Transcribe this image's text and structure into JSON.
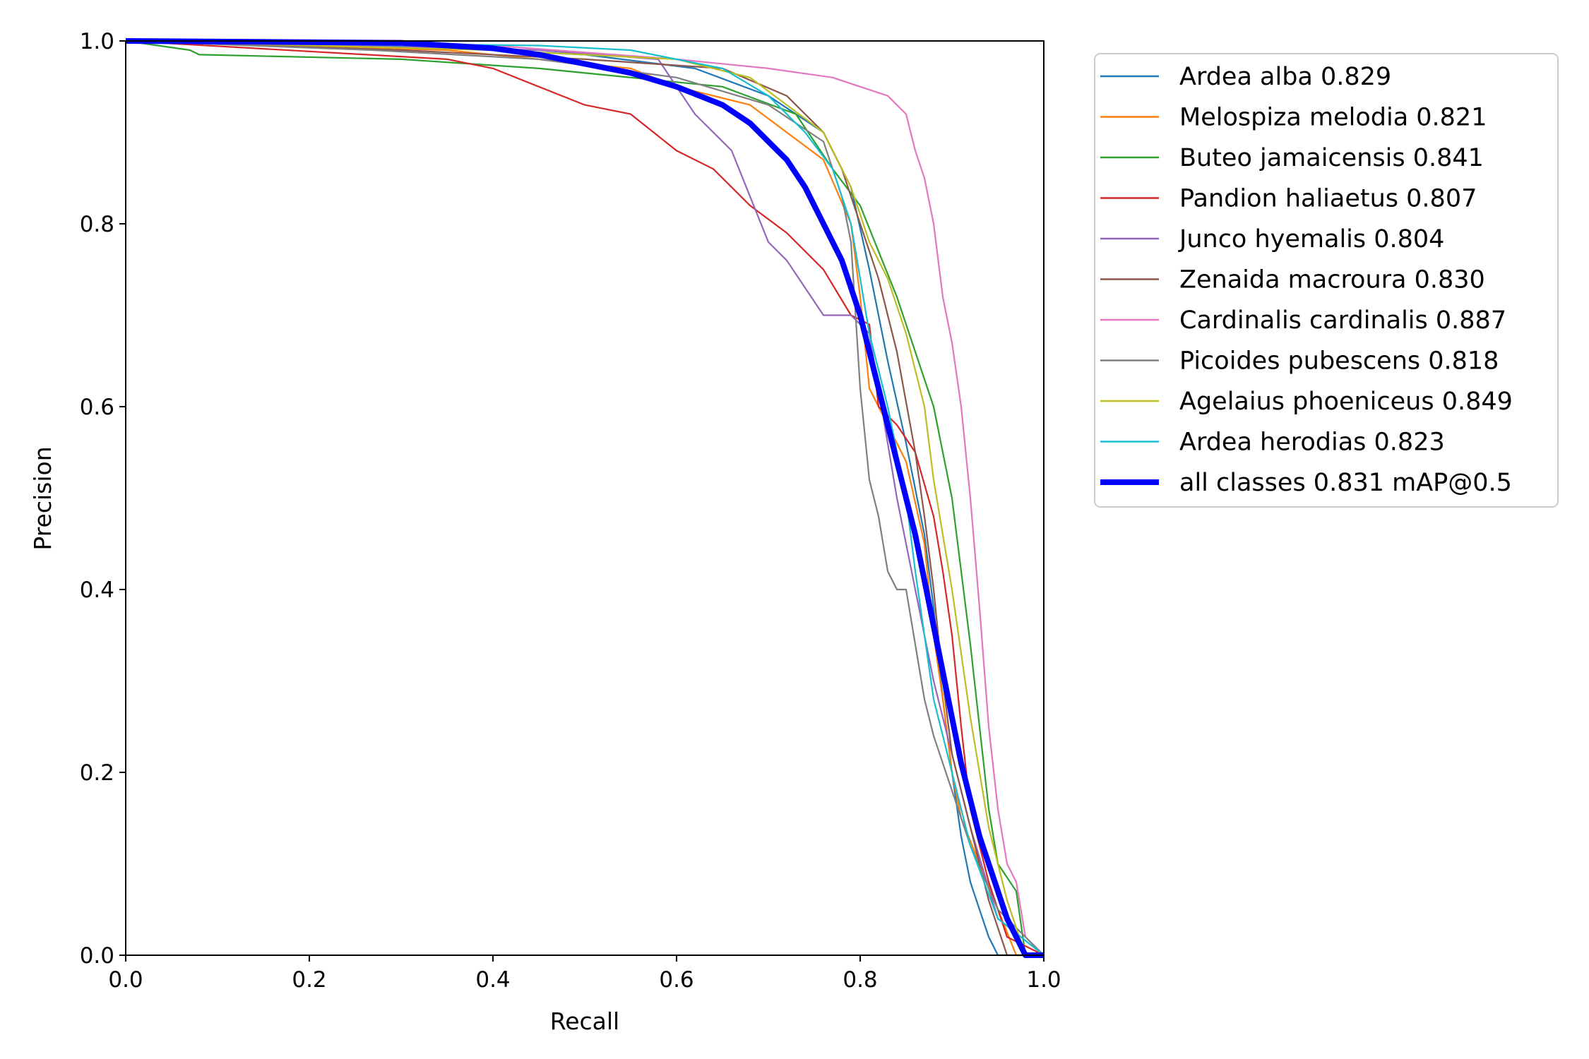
{
  "chart_data": {
    "type": "line",
    "title": "",
    "xlabel": "Recall",
    "ylabel": "Precision",
    "xlim": [
      0,
      1
    ],
    "ylim": [
      0,
      1
    ],
    "xticks": [
      "0.0",
      "0.2",
      "0.4",
      "0.6",
      "0.8",
      "1.0"
    ],
    "yticks": [
      "0.0",
      "0.2",
      "0.4",
      "0.6",
      "0.8",
      "1.0"
    ],
    "grid": false,
    "legend_position": "outside-right-top",
    "series": [
      {
        "label": "Ardea alba 0.829",
        "color": "#1f77b4",
        "width": "thin",
        "x": [
          0.0,
          0.3,
          0.5,
          0.62,
          0.7,
          0.76,
          0.79,
          0.81,
          0.83,
          0.85,
          0.87,
          0.88,
          0.89,
          0.9,
          0.91,
          0.92,
          0.93,
          0.94,
          0.95,
          1.0
        ],
        "y": [
          1.0,
          0.995,
          0.985,
          0.97,
          0.94,
          0.9,
          0.84,
          0.75,
          0.65,
          0.56,
          0.46,
          0.38,
          0.28,
          0.2,
          0.13,
          0.08,
          0.05,
          0.02,
          0.0,
          0.0
        ]
      },
      {
        "label": "Melospiza melodia 0.821",
        "color": "#ff7f0e",
        "width": "thin",
        "x": [
          0.0,
          0.35,
          0.55,
          0.6,
          0.68,
          0.76,
          0.79,
          0.8,
          0.81,
          0.82,
          0.83,
          0.85,
          0.87,
          0.88,
          0.89,
          0.9,
          0.91,
          0.93,
          0.95,
          0.97,
          1.0
        ],
        "y": [
          1.0,
          0.99,
          0.97,
          0.95,
          0.93,
          0.87,
          0.8,
          0.72,
          0.62,
          0.6,
          0.58,
          0.54,
          0.45,
          0.35,
          0.28,
          0.2,
          0.15,
          0.1,
          0.05,
          0.0,
          0.0
        ]
      },
      {
        "label": "Buteo jamaicensis 0.841",
        "color": "#2ca02c",
        "width": "thin",
        "x": [
          0.0,
          0.07,
          0.08,
          0.3,
          0.45,
          0.55,
          0.65,
          0.73,
          0.77,
          0.8,
          0.82,
          0.84,
          0.86,
          0.88,
          0.9,
          0.91,
          0.92,
          0.93,
          0.94,
          0.95,
          0.97,
          0.98,
          1.0
        ],
        "y": [
          1.0,
          0.99,
          0.985,
          0.98,
          0.97,
          0.96,
          0.95,
          0.92,
          0.86,
          0.82,
          0.77,
          0.72,
          0.66,
          0.6,
          0.5,
          0.42,
          0.34,
          0.25,
          0.16,
          0.1,
          0.07,
          0.0,
          0.0
        ]
      },
      {
        "label": "Pandion haliaetus 0.807",
        "color": "#d62728",
        "width": "thin",
        "x": [
          0.0,
          0.35,
          0.4,
          0.45,
          0.5,
          0.55,
          0.6,
          0.64,
          0.68,
          0.72,
          0.76,
          0.79,
          0.81,
          0.82,
          0.84,
          0.86,
          0.88,
          0.89,
          0.9,
          0.91,
          0.92,
          0.94,
          0.96,
          1.0
        ],
        "y": [
          1.0,
          0.98,
          0.97,
          0.95,
          0.93,
          0.92,
          0.88,
          0.86,
          0.82,
          0.79,
          0.75,
          0.7,
          0.69,
          0.6,
          0.58,
          0.55,
          0.48,
          0.42,
          0.35,
          0.25,
          0.16,
          0.08,
          0.02,
          0.0
        ]
      },
      {
        "label": "Junco hyemalis 0.804",
        "color": "#9467bd",
        "width": "thin",
        "x": [
          0.0,
          0.45,
          0.58,
          0.6,
          0.62,
          0.66,
          0.68,
          0.7,
          0.72,
          0.74,
          0.76,
          0.79,
          0.81,
          0.82,
          0.84,
          0.86,
          0.88,
          0.9,
          0.92,
          0.95,
          1.0
        ],
        "y": [
          1.0,
          0.99,
          0.98,
          0.95,
          0.92,
          0.88,
          0.83,
          0.78,
          0.76,
          0.73,
          0.7,
          0.7,
          0.68,
          0.62,
          0.5,
          0.4,
          0.3,
          0.22,
          0.14,
          0.04,
          0.0
        ]
      },
      {
        "label": "Zenaida macroura 0.830",
        "color": "#8c564b",
        "width": "thin",
        "x": [
          0.0,
          0.3,
          0.5,
          0.65,
          0.72,
          0.76,
          0.78,
          0.8,
          0.82,
          0.84,
          0.86,
          0.87,
          0.88,
          0.89,
          0.9,
          0.92,
          0.94,
          0.96,
          1.0
        ],
        "y": [
          1.0,
          0.99,
          0.98,
          0.97,
          0.94,
          0.9,
          0.86,
          0.8,
          0.74,
          0.66,
          0.55,
          0.48,
          0.4,
          0.3,
          0.22,
          0.14,
          0.06,
          0.0,
          0.0
        ]
      },
      {
        "label": "Cardinalis cardinalis 0.887",
        "color": "#e377c2",
        "width": "thin",
        "x": [
          0.0,
          0.4,
          0.6,
          0.7,
          0.77,
          0.8,
          0.83,
          0.85,
          0.86,
          0.87,
          0.88,
          0.89,
          0.9,
          0.91,
          0.92,
          0.93,
          0.94,
          0.95,
          0.96,
          0.97,
          0.98,
          1.0
        ],
        "y": [
          1.0,
          0.995,
          0.98,
          0.97,
          0.96,
          0.95,
          0.94,
          0.92,
          0.88,
          0.85,
          0.8,
          0.72,
          0.67,
          0.6,
          0.5,
          0.38,
          0.25,
          0.16,
          0.1,
          0.08,
          0.02,
          0.0
        ]
      },
      {
        "label": "Picoides pubescens 0.818",
        "color": "#7f7f7f",
        "width": "thin",
        "x": [
          0.0,
          0.27,
          0.45,
          0.6,
          0.7,
          0.76,
          0.78,
          0.79,
          0.8,
          0.81,
          0.82,
          0.83,
          0.84,
          0.85,
          0.86,
          0.87,
          0.88,
          0.9,
          0.92,
          0.95,
          1.0
        ],
        "y": [
          1.0,
          0.99,
          0.98,
          0.96,
          0.93,
          0.89,
          0.83,
          0.78,
          0.62,
          0.52,
          0.48,
          0.42,
          0.4,
          0.4,
          0.34,
          0.28,
          0.24,
          0.18,
          0.12,
          0.05,
          0.0
        ]
      },
      {
        "label": "Agelaius phoeniceus 0.849",
        "color": "#bcbd22",
        "width": "thin",
        "x": [
          0.0,
          0.4,
          0.6,
          0.68,
          0.72,
          0.76,
          0.79,
          0.81,
          0.83,
          0.85,
          0.87,
          0.88,
          0.89,
          0.9,
          0.91,
          0.92,
          0.93,
          0.94,
          0.96,
          0.98,
          1.0
        ],
        "y": [
          1.0,
          0.99,
          0.98,
          0.96,
          0.93,
          0.9,
          0.84,
          0.78,
          0.74,
          0.68,
          0.6,
          0.52,
          0.46,
          0.4,
          0.33,
          0.26,
          0.2,
          0.14,
          0.06,
          0.0,
          0.0
        ]
      },
      {
        "label": "Ardea herodias 0.823",
        "color": "#17becf",
        "width": "thin",
        "x": [
          0.0,
          0.45,
          0.55,
          0.65,
          0.7,
          0.74,
          0.77,
          0.79,
          0.8,
          0.81,
          0.82,
          0.83,
          0.84,
          0.85,
          0.86,
          0.87,
          0.88,
          0.9,
          0.92,
          0.95,
          1.0
        ],
        "y": [
          1.0,
          0.995,
          0.99,
          0.97,
          0.94,
          0.9,
          0.86,
          0.8,
          0.74,
          0.68,
          0.64,
          0.6,
          0.55,
          0.5,
          0.42,
          0.35,
          0.28,
          0.2,
          0.12,
          0.04,
          0.0
        ]
      },
      {
        "label": "all classes 0.831 mAP@0.5",
        "color": "#0000ff",
        "width": "thick",
        "x": [
          0.0,
          0.3,
          0.4,
          0.45,
          0.5,
          0.55,
          0.6,
          0.65,
          0.68,
          0.7,
          0.72,
          0.74,
          0.76,
          0.78,
          0.8,
          0.81,
          0.82,
          0.83,
          0.84,
          0.85,
          0.86,
          0.87,
          0.88,
          0.89,
          0.9,
          0.91,
          0.92,
          0.93,
          0.94,
          0.95,
          0.96,
          0.97,
          0.98,
          1.0
        ],
        "y": [
          1.0,
          0.998,
          0.992,
          0.985,
          0.975,
          0.965,
          0.95,
          0.93,
          0.91,
          0.89,
          0.87,
          0.84,
          0.8,
          0.76,
          0.7,
          0.66,
          0.62,
          0.58,
          0.54,
          0.5,
          0.46,
          0.41,
          0.36,
          0.31,
          0.26,
          0.21,
          0.17,
          0.13,
          0.1,
          0.07,
          0.04,
          0.02,
          0.0,
          0.0
        ]
      }
    ]
  }
}
